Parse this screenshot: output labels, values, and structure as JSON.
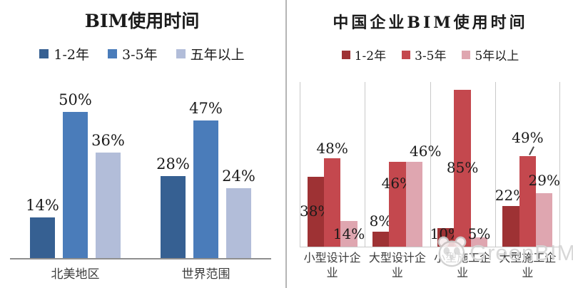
{
  "page": {
    "background": "#ffffff",
    "divider_color": "#b5b5b5",
    "text_color": "#1b1b1b"
  },
  "watermark": {
    "text": "GreenBIM",
    "icon": "panda-logo",
    "color": "#d4d4d4"
  },
  "chart_data": [
    {
      "type": "bar",
      "title": "BIM使用时间",
      "categories": [
        "北美地区",
        "世界范围"
      ],
      "series": [
        {
          "name": "1-2年",
          "color": "#366092",
          "values": [
            14,
            28
          ]
        },
        {
          "name": "3-5年",
          "color": "#4a7cba",
          "values": [
            50,
            47
          ]
        },
        {
          "name": "五年以上",
          "color": "#b2bdd9",
          "values": [
            36,
            24
          ]
        }
      ],
      "unit": "%",
      "ylim": [
        0,
        55
      ],
      "grid": false,
      "data_labels": true,
      "legend_position": "top",
      "axis_color": "#8f8f8f"
    },
    {
      "type": "bar",
      "title": "中国企业BIM使用时间",
      "categories": [
        "小型设计企业",
        "大型设计企业",
        "小型施工企业",
        "大型施工企业"
      ],
      "series": [
        {
          "name": "1-2年",
          "color": "#9e3234",
          "values": [
            38,
            8,
            10,
            22
          ]
        },
        {
          "name": "3-5年",
          "color": "#c4484e",
          "values": [
            48,
            46,
            85,
            49
          ]
        },
        {
          "name": "5年以上",
          "color": "#dfa6b0",
          "values": [
            14,
            46,
            5,
            29
          ]
        }
      ],
      "unit": "%",
      "ylim": [
        0,
        90
      ],
      "grid": true,
      "gridline_color": "#c9c9c9",
      "data_labels": true,
      "legend_position": "top",
      "label_pos": [
        [
          {
            "pos": "mid"
          },
          {
            "pos": "above",
            "dy": 2
          },
          {
            "pos": "low"
          }
        ],
        [
          {
            "pos": "above"
          },
          {
            "pos": "upper"
          },
          {
            "pos": "above",
            "dx": 16
          }
        ],
        [
          {
            "pos": "low"
          },
          {
            "pos": "mid"
          },
          {
            "pos": "low"
          }
        ],
        [
          {
            "pos": "above"
          },
          {
            "pos": "above",
            "dy": 14,
            "leader": true
          },
          {
            "pos": "above",
            "dy": 6
          }
        ]
      ]
    }
  ]
}
